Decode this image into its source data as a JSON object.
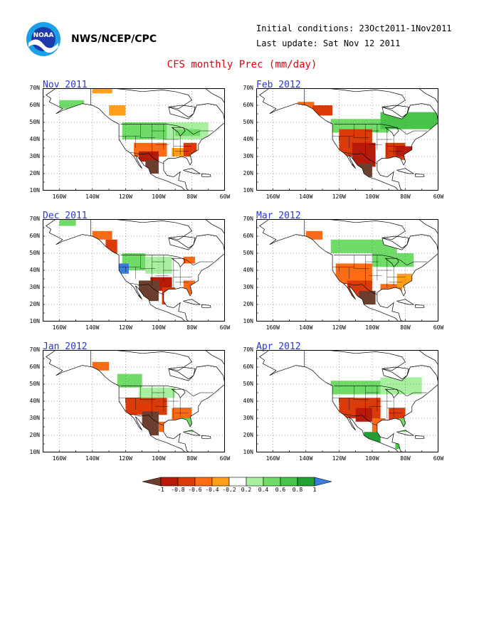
{
  "header": {
    "agency": "NWS/NCEP/CPC",
    "initial_conditions": "Initial conditions: 23Oct2011-1Nov2011",
    "last_update": "Last update: Sat Nov 12 2011",
    "title": "CFS monthly Prec (mm/day)",
    "logo_text": "NOAA"
  },
  "axes": {
    "lat_labels": [
      "70N",
      "60N",
      "50N",
      "40N",
      "30N",
      "20N",
      "10N"
    ],
    "lon_labels": [
      "160W",
      "140W",
      "120W",
      "100W",
      "80W",
      "60W"
    ]
  },
  "panels": [
    {
      "label": "Nov 2011"
    },
    {
      "label": "Feb 2012"
    },
    {
      "label": "Dec 2011"
    },
    {
      "label": "Mar 2012"
    },
    {
      "label": "Jan 2012"
    },
    {
      "label": "Apr 2012"
    }
  ],
  "colorbar": {
    "ticks": [
      "-1",
      "-0.8",
      "-0.6",
      "-0.4",
      "-0.2",
      "0.2",
      "0.4",
      "0.6",
      "0.8",
      "1"
    ],
    "colors": [
      "#6b3e2e",
      "#b81a0a",
      "#dd3a0a",
      "#ff6b15",
      "#ff9f1a",
      "#ffffff",
      "#a8f0a0",
      "#70dc68",
      "#48c448",
      "#20a030",
      "#3a7cdc"
    ]
  },
  "colors": {
    "land_outline": "#000000",
    "title": "#e0000e",
    "panel_label": "#2a36d6"
  }
}
